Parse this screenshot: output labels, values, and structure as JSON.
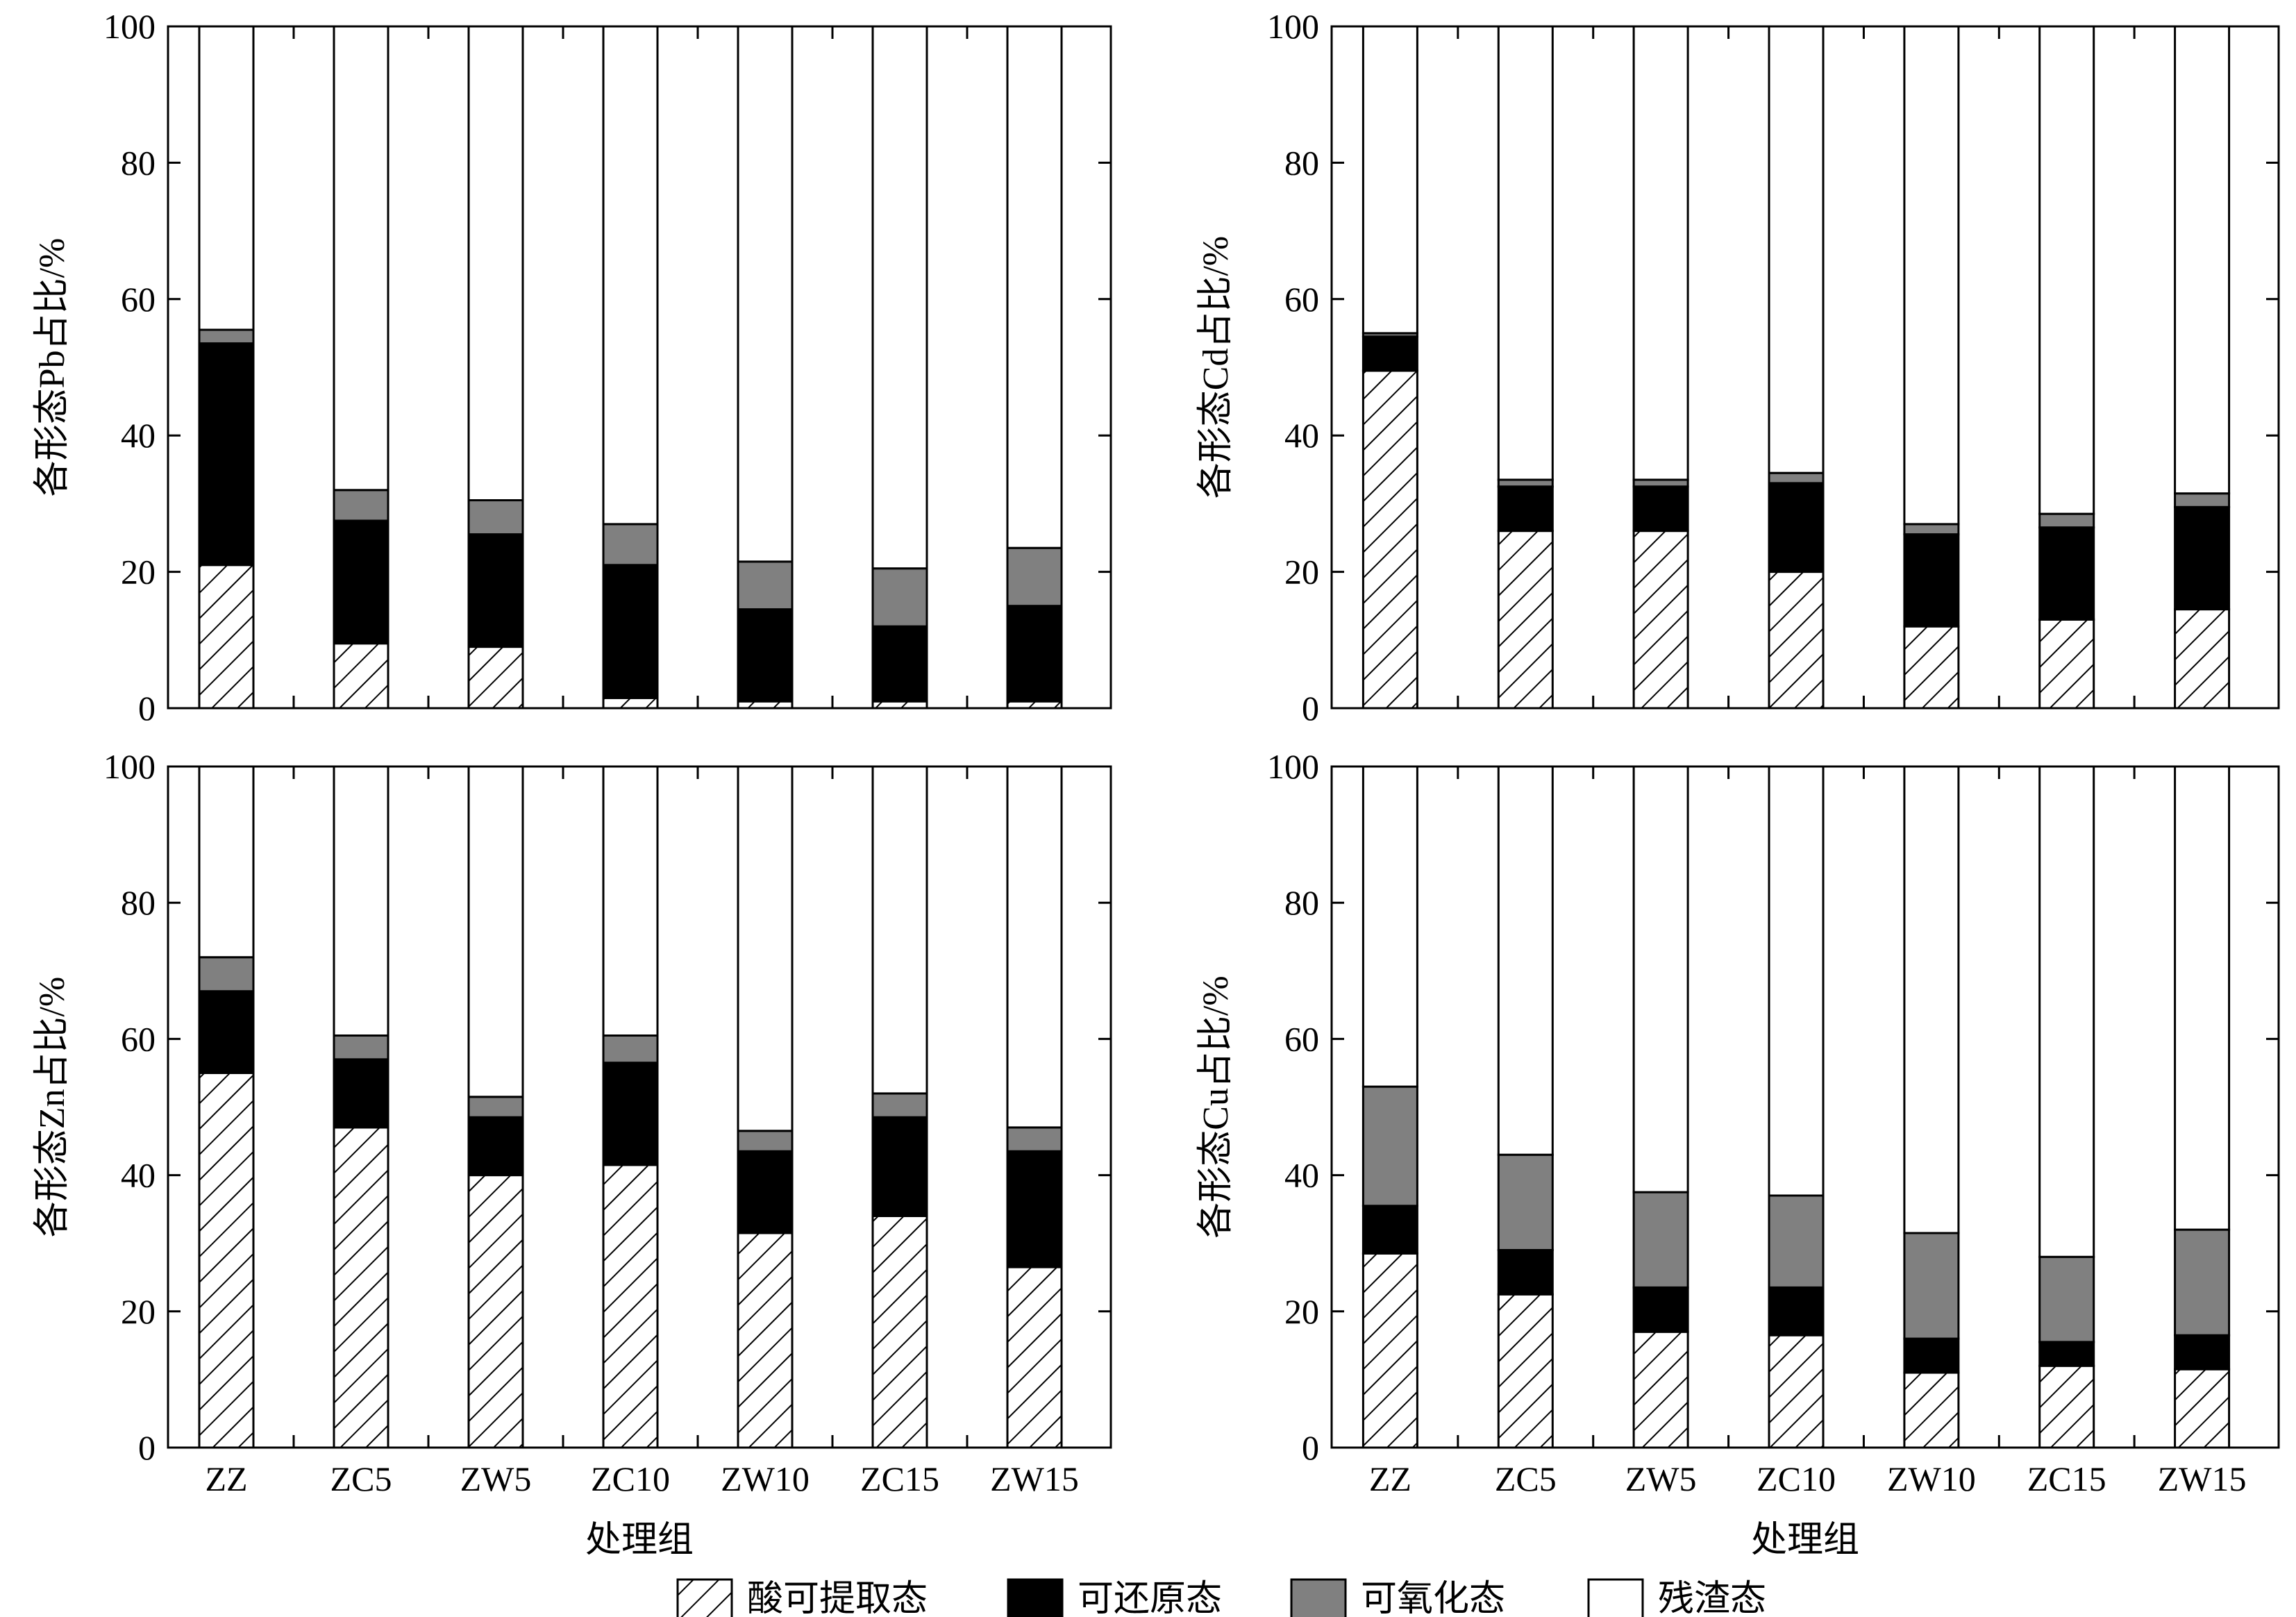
{
  "legend": {
    "items": [
      {
        "label": "酸可提取态",
        "fill": "hatch"
      },
      {
        "label": "可还原态",
        "fill": "#000000"
      },
      {
        "label": "可氧化态",
        "fill": "#808080"
      },
      {
        "label": "残渣态",
        "fill": "#ffffff"
      }
    ]
  },
  "colors": {
    "hatch": "#000000",
    "reducible": "#000000",
    "oxidizable": "#808080",
    "residual": "#ffffff"
  },
  "chart_data": [
    {
      "type": "bar",
      "stacked": true,
      "panel": "top-left",
      "categories": [
        "ZZ",
        "ZC5",
        "ZW5",
        "ZC10",
        "ZW10",
        "ZC15",
        "ZW15"
      ],
      "ylabel": "各形态Pb占比/%",
      "xlabel": "",
      "ylim": [
        0,
        100
      ],
      "yticks": [
        "0",
        "20",
        "40",
        "60",
        "80",
        "100"
      ],
      "show_xticklabels": false,
      "series": [
        {
          "name": "酸可提取态",
          "values": [
            21,
            9.5,
            9,
            1.5,
            1,
            1,
            1
          ]
        },
        {
          "name": "可还原态",
          "values": [
            32.5,
            18,
            16.5,
            19.5,
            13.5,
            11,
            14
          ]
        },
        {
          "name": "可氧化态",
          "values": [
            2,
            4.5,
            5,
            6,
            7,
            8.5,
            8.5
          ]
        },
        {
          "name": "残渣态",
          "values": [
            44.5,
            68,
            69.5,
            73,
            78.5,
            79.5,
            76.5
          ]
        }
      ]
    },
    {
      "type": "bar",
      "stacked": true,
      "panel": "top-right",
      "categories": [
        "ZZ",
        "ZC5",
        "ZW5",
        "ZC10",
        "ZW10",
        "ZC15",
        "ZW15"
      ],
      "ylabel": "各形态Cd占比/%",
      "xlabel": "",
      "ylim": [
        0,
        100
      ],
      "yticks": [
        "0",
        "20",
        "40",
        "60",
        "80",
        "100"
      ],
      "show_xticklabels": false,
      "series": [
        {
          "name": "酸可提取态",
          "values": [
            49.5,
            26,
            26,
            20,
            12,
            13,
            14.5
          ]
        },
        {
          "name": "可还原态",
          "values": [
            5,
            6.5,
            6.5,
            13,
            13.5,
            13.5,
            15
          ]
        },
        {
          "name": "可氧化态",
          "values": [
            0.5,
            1,
            1,
            1.5,
            1.5,
            2,
            2
          ]
        },
        {
          "name": "残渣态",
          "values": [
            45,
            66.5,
            66.5,
            65.5,
            73,
            71.5,
            68.5
          ]
        }
      ]
    },
    {
      "type": "bar",
      "stacked": true,
      "panel": "bottom-left",
      "categories": [
        "ZZ",
        "ZC5",
        "ZW5",
        "ZC10",
        "ZW10",
        "ZC15",
        "ZW15"
      ],
      "ylabel": "各形态Zn占比/%",
      "xlabel": "处理组",
      "ylim": [
        0,
        100
      ],
      "yticks": [
        "0",
        "20",
        "40",
        "60",
        "80",
        "100"
      ],
      "show_xticklabels": true,
      "series": [
        {
          "name": "酸可提取态",
          "values": [
            55,
            47,
            40,
            41.5,
            31.5,
            34,
            26.5
          ]
        },
        {
          "name": "可还原态",
          "values": [
            12,
            10,
            8.5,
            15,
            12,
            14.5,
            17
          ]
        },
        {
          "name": "可氧化态",
          "values": [
            5,
            3.5,
            3,
            4,
            3,
            3.5,
            3.5
          ]
        },
        {
          "name": "残渣态",
          "values": [
            28,
            39.5,
            48.5,
            39.5,
            53.5,
            48,
            53
          ]
        }
      ]
    },
    {
      "type": "bar",
      "stacked": true,
      "panel": "bottom-right",
      "categories": [
        "ZZ",
        "ZC5",
        "ZW5",
        "ZC10",
        "ZW10",
        "ZC15",
        "ZW15"
      ],
      "ylabel": "各形态Cu占比/%",
      "xlabel": "处理组",
      "ylim": [
        0,
        100
      ],
      "yticks": [
        "0",
        "20",
        "40",
        "60",
        "80",
        "100"
      ],
      "show_xticklabels": true,
      "series": [
        {
          "name": "酸可提取态",
          "values": [
            28.5,
            22.5,
            17,
            16.5,
            11,
            12,
            11.5
          ]
        },
        {
          "name": "可还原态",
          "values": [
            7,
            6.5,
            6.5,
            7,
            5,
            3.5,
            5
          ]
        },
        {
          "name": "可氧化态",
          "values": [
            17.5,
            14,
            14,
            13.5,
            15.5,
            12.5,
            15.5
          ]
        },
        {
          "name": "残渣态",
          "values": [
            47,
            57,
            62.5,
            63,
            68.5,
            72,
            68
          ]
        }
      ]
    }
  ]
}
